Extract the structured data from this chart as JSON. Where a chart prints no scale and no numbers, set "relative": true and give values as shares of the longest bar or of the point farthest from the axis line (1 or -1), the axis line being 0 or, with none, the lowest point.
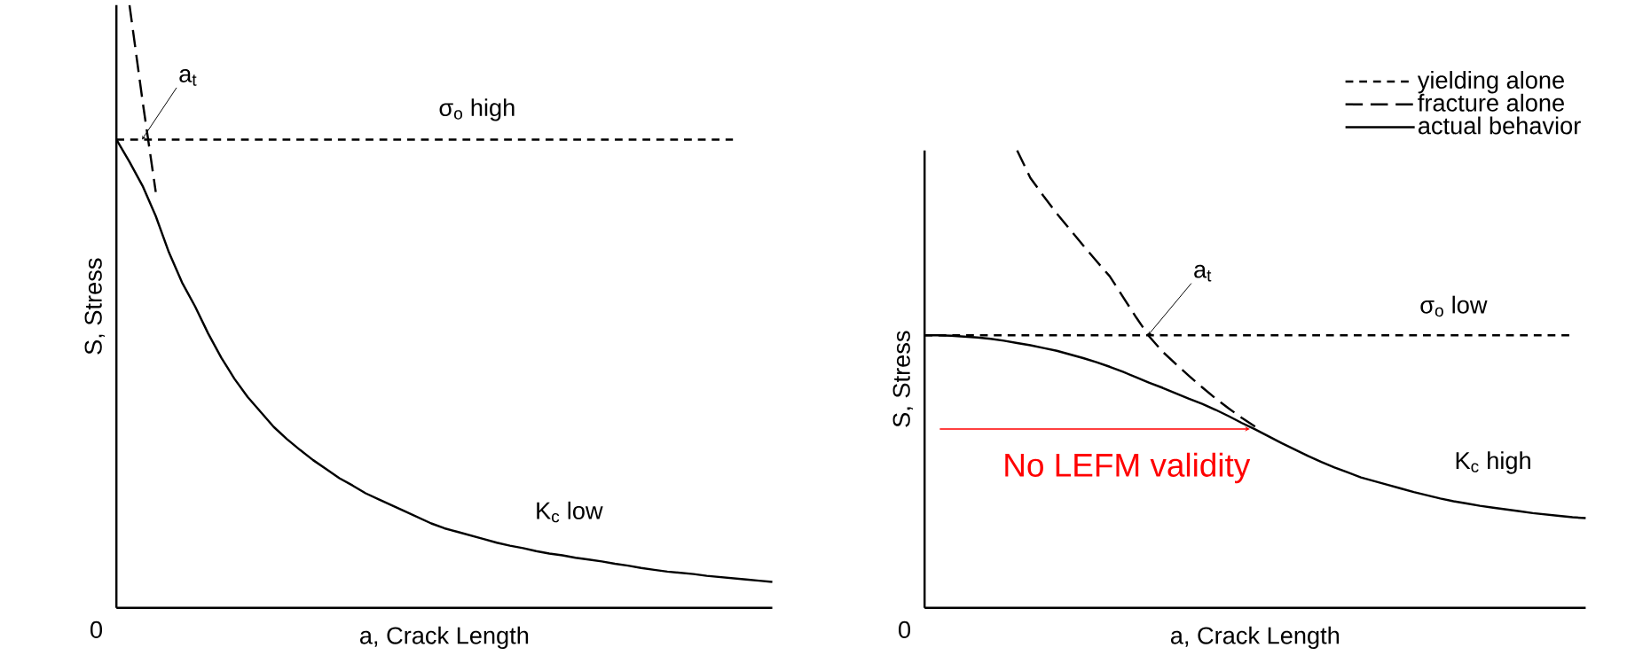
{
  "chart_data": [
    {
      "type": "line",
      "relative": true,
      "xlabel": "a, Crack Length",
      "ylabel": "S, Stress",
      "categories": [
        null,
        null,
        null,
        null,
        null,
        null,
        null,
        null,
        null,
        null,
        null,
        null,
        null,
        null,
        null,
        null,
        null,
        null,
        null,
        null,
        null,
        null,
        null,
        null,
        null,
        null,
        null,
        null,
        null,
        null,
        null,
        null,
        null,
        null,
        null,
        null,
        null,
        null,
        null,
        null,
        null,
        null,
        null,
        null,
        null,
        null,
        null,
        null,
        null,
        null,
        null
      ],
      "series": [
        {
          "color": "#000000",
          "line_style": "dotted",
          "values": [
            0.777,
            0.777,
            0.777,
            0.777,
            0.777,
            0.777,
            0.777,
            0.777,
            0.777,
            0.777,
            0.777,
            0.777,
            0.777,
            0.777,
            0.777,
            0.777,
            0.777,
            0.777,
            0.777,
            0.777,
            0.777,
            0.777,
            0.777,
            0.777,
            0.777,
            0.777,
            0.777,
            0.777,
            0.777,
            0.777,
            0.777,
            0.777,
            0.777,
            0.777,
            0.777,
            0.777,
            0.777,
            0.777,
            0.777,
            0.777,
            0.777,
            0.777,
            0.777,
            0.777,
            0.777,
            0.777,
            0.777,
            0.777,
            null,
            null,
            null
          ]
        },
        {
          "color": "#000000",
          "line_style": "dashed",
          "values": [
            null,
            1.0,
            0.84,
            0.69,
            null,
            null,
            null,
            null,
            null,
            null,
            null,
            null,
            null,
            null,
            null,
            null,
            null,
            null,
            null,
            null,
            null,
            null,
            null,
            null,
            null,
            null,
            null,
            null,
            null,
            null,
            null,
            null,
            null,
            null,
            null,
            null,
            null,
            null,
            null,
            null,
            null,
            null,
            null,
            null,
            null,
            null,
            null,
            null,
            null,
            null,
            null
          ]
        },
        {
          "color": "#000000",
          "line_style": "solid",
          "values": [
            0.777,
            0.74,
            0.7,
            0.65,
            0.59,
            0.54,
            0.5,
            0.455,
            0.415,
            0.38,
            0.35,
            0.325,
            0.3,
            0.28,
            0.262,
            0.245,
            0.23,
            0.215,
            0.203,
            0.19,
            0.18,
            0.17,
            0.16,
            0.15,
            0.14,
            0.132,
            0.126,
            0.12,
            0.114,
            0.108,
            0.103,
            0.099,
            0.094,
            0.09,
            0.087,
            0.083,
            0.08,
            0.077,
            0.073,
            0.07,
            0.066,
            0.063,
            0.06,
            0.058,
            0.056,
            0.053,
            0.051,
            0.049,
            0.047,
            0.045,
            0.043
          ]
        }
      ],
      "annotations": [
        "0",
        "a$_{t}$",
        "σ$_{o}$ high",
        "K$_{c}$ low"
      ]
    },
    {
      "type": "line",
      "relative": true,
      "xlabel": "a, Crack Length",
      "ylabel": "S, Stress",
      "legend": "top right",
      "categories": [
        null,
        null,
        null,
        null,
        null,
        null,
        null,
        null,
        null,
        null,
        null,
        null,
        null,
        null,
        null,
        null,
        null,
        null,
        null,
        null,
        null,
        null,
        null,
        null,
        null,
        null,
        null,
        null,
        null,
        null,
        null,
        null,
        null,
        null,
        null,
        null,
        null,
        null,
        null,
        null,
        null,
        null,
        null,
        null,
        null,
        null,
        null,
        null,
        null,
        null,
        null
      ],
      "series": [
        {
          "name": "yielding alone",
          "color": "#000000",
          "line_style": "dotted",
          "values": [
            0.596,
            0.596,
            0.596,
            0.596,
            0.596,
            0.596,
            0.596,
            0.596,
            0.596,
            0.596,
            0.596,
            0.596,
            0.596,
            0.596,
            0.596,
            0.596,
            0.596,
            0.596,
            0.596,
            0.596,
            0.596,
            0.596,
            0.596,
            0.596,
            0.596,
            0.596,
            0.596,
            0.596,
            0.596,
            0.596,
            0.596,
            0.596,
            0.596,
            0.596,
            0.596,
            0.596,
            0.596,
            0.596,
            0.596,
            0.596,
            0.596,
            0.596,
            0.596,
            0.596,
            0.596,
            0.596,
            0.596,
            0.596,
            0.596,
            0.596,
            null
          ]
        },
        {
          "name": "fracture alone",
          "color": "#000000",
          "line_style": "dashed",
          "values": [
            null,
            null,
            null,
            null,
            null,
            null,
            null,
            1.0,
            0.94,
            0.9,
            0.862,
            0.827,
            0.792,
            0.758,
            0.725,
            0.68,
            0.635,
            0.593,
            0.56,
            0.533,
            0.507,
            0.482,
            0.458,
            0.436,
            0.415,
            0.396,
            null,
            null,
            null,
            null,
            null,
            null,
            null,
            null,
            null,
            null,
            null,
            null,
            null,
            null,
            null,
            null,
            null,
            null,
            null,
            null,
            null,
            null,
            null,
            null,
            null
          ]
        },
        {
          "name": "actual behavior",
          "color": "#000000",
          "line_style": "solid",
          "values": [
            0.596,
            0.596,
            0.595,
            0.593,
            0.591,
            0.588,
            0.584,
            0.579,
            0.574,
            0.568,
            0.562,
            0.554,
            0.546,
            0.537,
            0.527,
            0.516,
            0.504,
            0.492,
            0.481,
            0.469,
            0.457,
            0.446,
            0.433,
            0.419,
            0.404,
            0.39,
            0.375,
            0.36,
            0.346,
            0.332,
            0.319,
            0.307,
            0.296,
            0.285,
            0.277,
            0.269,
            0.261,
            0.253,
            0.246,
            0.239,
            0.233,
            0.228,
            0.223,
            0.219,
            0.215,
            0.211,
            0.207,
            0.204,
            0.201,
            0.198,
            0.196
          ]
        }
      ],
      "annotations": [
        "0",
        "a$_{t}$",
        "σ$_{o}$ low",
        "K$_{c}$ high",
        "No LEFM validity"
      ]
    }
  ]
}
